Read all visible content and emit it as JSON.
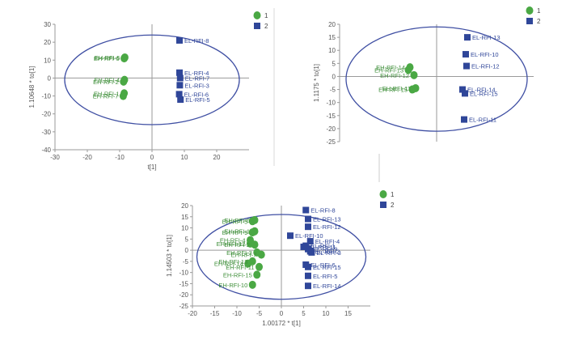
{
  "colors": {
    "eh": "#4aa844",
    "el": "#2f4699",
    "ellipse": "#3f4fa3",
    "label_eh": "#3f8f3a",
    "label_el": "#2f4699"
  },
  "legend": {
    "group1": "1",
    "group2": "2"
  },
  "chart_data": [
    {
      "type": "scatter",
      "xlabel": "t[1]",
      "ylabel": "1.10648 * to[1]",
      "xlim": [
        -30,
        30
      ],
      "ylim": [
        -40,
        30
      ],
      "xticks": [
        -30,
        -20,
        -10,
        0,
        10,
        20
      ],
      "yticks": [
        30,
        20,
        10,
        0,
        -10,
        -20,
        -30,
        -40
      ],
      "ellipse": {
        "cx": 0,
        "cy": -1,
        "rx": 27,
        "ry": 25
      },
      "series": [
        {
          "name": "1",
          "group": "eh",
          "points": [
            {
              "label": "EH-RFI-6",
              "x": -8.6,
              "y": 11
            },
            {
              "label": "EH-RFI-5",
              "x": -8.4,
              "y": 11.5
            },
            {
              "label": "EH-RFI-2",
              "x": -8.8,
              "y": -2
            },
            {
              "label": "EH-RFI-4",
              "x": -8.5,
              "y": -1
            },
            {
              "label": "EH-RFI-7",
              "x": -8.9,
              "y": -10
            },
            {
              "label": "EH-RFI-1",
              "x": -8.6,
              "y": -8.5
            }
          ]
        },
        {
          "name": "2",
          "group": "el",
          "points": [
            {
              "label": "EL-RFI-8",
              "x": 8.5,
              "y": 21
            },
            {
              "label": "EL-RFI-4",
              "x": 8.5,
              "y": 3
            },
            {
              "label": "EL-RFI-7",
              "x": 8.7,
              "y": 0
            },
            {
              "label": "EL-RFI-3",
              "x": 8.6,
              "y": -4
            },
            {
              "label": "EL-RFI-6",
              "x": 8.4,
              "y": -9
            },
            {
              "label": "EL-RFI-5",
              "x": 8.8,
              "y": -12
            }
          ]
        }
      ]
    },
    {
      "type": "scatter",
      "xlabel": "",
      "ylabel": "1.1175 * to[1]",
      "xlim": [
        -12,
        12
      ],
      "ylim": [
        -25,
        20
      ],
      "xticks": [],
      "yticks": [
        20,
        15,
        10,
        5,
        0,
        -5,
        -10,
        -15,
        -20,
        -25
      ],
      "ellipse": {
        "cx": 0,
        "cy": -1,
        "rx": 11.2,
        "ry": 20
      },
      "series": [
        {
          "name": "1",
          "group": "eh",
          "points": [
            {
              "label": "EH-RFI-13",
              "x": -3.5,
              "y": 2.5
            },
            {
              "label": "EH-RFI-14",
              "x": -3.3,
              "y": 3.5
            },
            {
              "label": "EH-RFI-12",
              "x": -2.8,
              "y": 0.5
            },
            {
              "label": "EH-RFI-15",
              "x": -3.0,
              "y": -5
            },
            {
              "label": "EH-RFI-11",
              "x": -2.6,
              "y": -4.5
            }
          ]
        },
        {
          "name": "2",
          "group": "el",
          "points": [
            {
              "label": "EL-RFI-13",
              "x": 3.8,
              "y": 15
            },
            {
              "label": "EL-RFI-10",
              "x": 3.6,
              "y": 8.5
            },
            {
              "label": "EL-RFI-12",
              "x": 3.7,
              "y": 4
            },
            {
              "label": "EL-RFI-14",
              "x": 3.2,
              "y": -5
            },
            {
              "label": "EL-RFI-15",
              "x": 3.5,
              "y": -6.5
            },
            {
              "label": "EL-RFI-11",
              "x": 3.4,
              "y": -16.5
            }
          ]
        }
      ]
    },
    {
      "type": "scatter",
      "xlabel": "1.00172 * t[1]",
      "ylabel": "1.14503 * to[1]",
      "xlim": [
        -20,
        20
      ],
      "ylim": [
        -25,
        20
      ],
      "xticks": [
        -20,
        -15,
        -10,
        -5,
        0,
        5,
        10,
        15
      ],
      "yticks": [
        20,
        15,
        10,
        5,
        0,
        -5,
        -10,
        -15,
        -20,
        -25
      ],
      "ellipse": {
        "cx": 0,
        "cy": -3,
        "rx": 19,
        "ry": 19
      },
      "series": [
        {
          "name": "1",
          "group": "eh",
          "points": [
            {
              "label": "EH-RFI-5",
              "x": -6.5,
              "y": 13
            },
            {
              "label": "EH-RFI-6",
              "x": -6.0,
              "y": 13.5
            },
            {
              "label": "EH-RFI-9",
              "x": -6.5,
              "y": 8
            },
            {
              "label": "EH-RFI-1",
              "x": -6.0,
              "y": 8.5
            },
            {
              "label": "EH-RFI-4",
              "x": -7.0,
              "y": 4.5
            },
            {
              "label": "EH-RFI-12",
              "x": -7.0,
              "y": 3
            },
            {
              "label": "EH-RFI-2",
              "x": -6.0,
              "y": 2.5
            },
            {
              "label": "EH-RFI-3",
              "x": -5.5,
              "y": -1
            },
            {
              "label": "EH-RFI-7",
              "x": -4.5,
              "y": -2
            },
            {
              "label": "EH-RFI-14",
              "x": -7.5,
              "y": -6
            },
            {
              "label": "EH-RFI-13",
              "x": -6.5,
              "y": -5
            },
            {
              "label": "EH-RFI-11",
              "x": -5.0,
              "y": -7.5
            },
            {
              "label": "EH-RFI-15",
              "x": -5.5,
              "y": -11
            },
            {
              "label": "EH-RFI-10",
              "x": -6.5,
              "y": -15.5
            }
          ]
        },
        {
          "name": "2",
          "group": "el",
          "points": [
            {
              "label": "EL-RFI-8",
              "x": 5.5,
              "y": 18
            },
            {
              "label": "EL-RFI-13",
              "x": 6.0,
              "y": 14
            },
            {
              "label": "EL-RFI-12",
              "x": 6.0,
              "y": 10.5
            },
            {
              "label": "EL-RFI-10",
              "x": 2.0,
              "y": 6.5
            },
            {
              "label": "EL-RFI-4",
              "x": 6.5,
              "y": 4
            },
            {
              "label": "EL-RFI-11",
              "x": 5.0,
              "y": 1.5
            },
            {
              "label": "EL-RFI-1",
              "x": 5.5,
              "y": 2
            },
            {
              "label": "EL-RFI-9",
              "x": 6.0,
              "y": 0.5
            },
            {
              "label": "EL-RFI-2",
              "x": 6.5,
              "y": -0.5
            },
            {
              "label": "EL-RFI-3",
              "x": 6.8,
              "y": -1
            },
            {
              "label": "EL-RFI-6",
              "x": 5.5,
              "y": -6.5
            },
            {
              "label": "EL-RFI-15",
              "x": 6.0,
              "y": -7.5
            },
            {
              "label": "EL-RFI-5",
              "x": 6.0,
              "y": -11.5
            },
            {
              "label": "EL-RFI-14",
              "x": 6.0,
              "y": -16
            }
          ]
        }
      ]
    }
  ]
}
